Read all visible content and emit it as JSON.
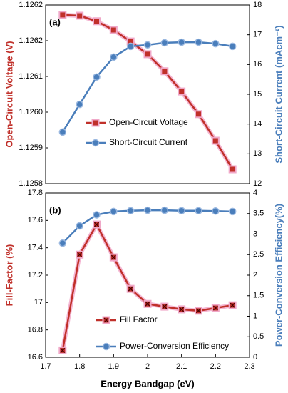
{
  "chart_data": [
    {
      "type": "line",
      "annotation": "(a)",
      "ylabel": "Open-Circuit Voltage (V)",
      "y2label": "Short-Circuit Current (mAcm⁻²)",
      "x": [
        1.75,
        1.8,
        1.85,
        1.9,
        1.95,
        2.0,
        2.05,
        2.1,
        2.15,
        2.2,
        2.25
      ],
      "xlim": [
        1.7,
        2.3
      ],
      "ylim": [
        1.1258,
        1.12625
      ],
      "yticks": [
        {
          "value": 1.1258,
          "label": "1.1258"
        },
        {
          "value": 1.12589,
          "label": "1.1259"
        },
        {
          "value": 1.12598,
          "label": "1.1260"
        },
        {
          "value": 1.12607,
          "label": "1.1261"
        },
        {
          "value": 1.12616,
          "label": "1.1262"
        },
        {
          "value": 1.12625,
          "label": "1.1262"
        }
      ],
      "y2lim": [
        12,
        18
      ],
      "y2ticks": [
        12,
        13,
        14,
        15,
        16,
        17,
        18
      ],
      "legend": "lower center",
      "series": [
        {
          "name": "Open-Circuit Voltage",
          "color": "#c0302a",
          "marker": "square",
          "values": [
            1.126225,
            1.126223,
            1.126209,
            1.126187,
            1.126158,
            1.126126,
            1.126083,
            1.126032,
            1.125975,
            1.125908,
            1.125836
          ]
        },
        {
          "name": "Short-Circuit Current",
          "color": "#4a7ebb",
          "marker": "circle",
          "axis": "y2",
          "values": [
            13.73,
            14.66,
            15.58,
            16.25,
            16.61,
            16.66,
            16.73,
            16.75,
            16.75,
            16.7,
            16.61
          ]
        }
      ]
    },
    {
      "type": "line",
      "annotation": "(b)",
      "xlabel": "Energy Bandgap (eV)",
      "ylabel": "Fill-Factor (%)",
      "y2label": "Power-Conversion Efficiency(%)",
      "x": [
        1.75,
        1.8,
        1.85,
        1.9,
        1.95,
        2.0,
        2.05,
        2.1,
        2.15,
        2.2,
        2.25
      ],
      "xlim": [
        1.7,
        2.3
      ],
      "xticks": [
        1.7,
        1.8,
        1.9,
        2,
        2.1,
        2.2,
        2.3
      ],
      "ylim": [
        16.6,
        17.8
      ],
      "yticks": [
        16.6,
        16.8,
        17,
        17.2,
        17.4,
        17.6,
        17.8
      ],
      "y2lim": [
        0,
        4
      ],
      "y2ticks": [
        0,
        0.5,
        1,
        1.5,
        2,
        2.5,
        3,
        3.5,
        4
      ],
      "legend": "lower center",
      "series": [
        {
          "name": "Fill Factor",
          "color": "#c0302a",
          "marker": "xsquare",
          "values": [
            16.65,
            17.35,
            17.57,
            17.33,
            17.1,
            16.99,
            16.97,
            16.95,
            16.94,
            16.96,
            16.98
          ]
        },
        {
          "name": "Power-Conversion Efficiency",
          "color": "#4a7ebb",
          "marker": "circle",
          "axis": "y2",
          "values": [
            2.78,
            3.2,
            3.47,
            3.55,
            3.57,
            3.58,
            3.58,
            3.57,
            3.57,
            3.56,
            3.55
          ]
        }
      ]
    }
  ]
}
